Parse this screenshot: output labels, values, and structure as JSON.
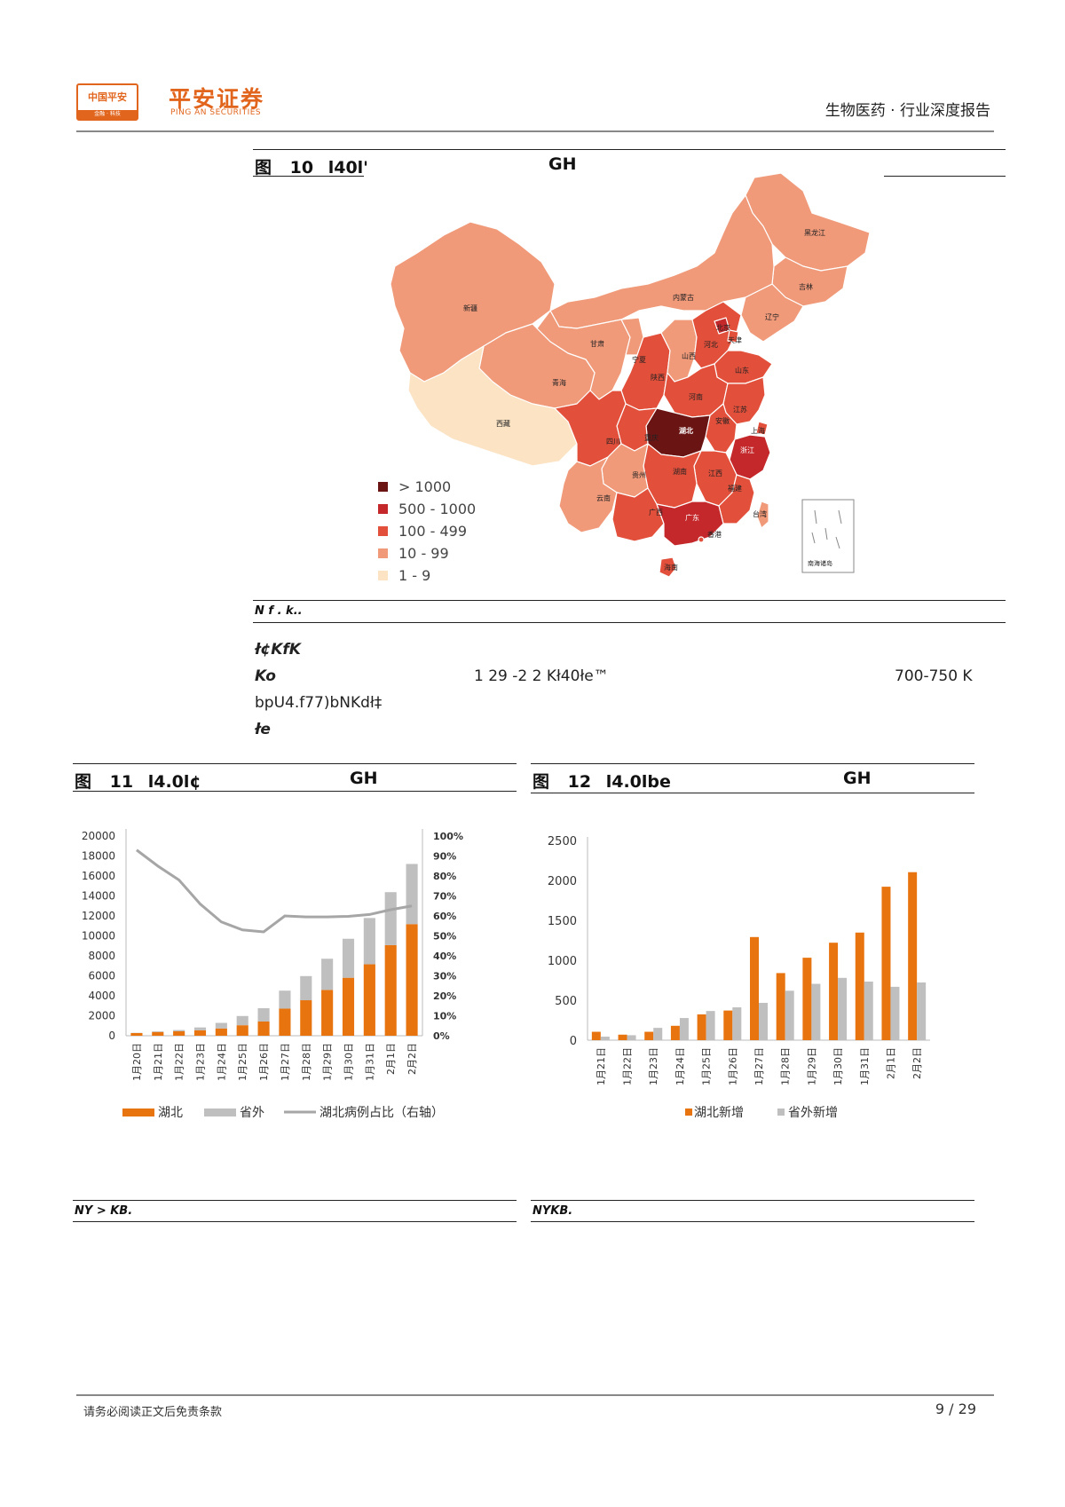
{
  "header": {
    "logo_text": "中国平安",
    "logo_sub": "金融 · 科技",
    "brand_name": "平安证券",
    "brand_sub": "PING AN SECURITIES",
    "report_category": "生物医药 · 行业深度报告"
  },
  "figure10": {
    "label": "图",
    "number": "10",
    "title_fragment": "l40l'",
    "title_suffix": "GH",
    "map_labels": {
      "heilongjiang": "黑龙江",
      "jilin": "吉林",
      "liaoning": "辽宁",
      "neimenggu": "内蒙古",
      "beijing": "北京",
      "tianjin": "天津",
      "hebei": "河北",
      "shanxi": "山西",
      "shandong": "山东",
      "xinjiang": "新疆",
      "gansu": "甘肃",
      "ningxia": "宁夏",
      "shaanxi": "陕西",
      "qinghai": "青海",
      "henan": "河南",
      "jiangsu": "江苏",
      "anhui": "安徽",
      "shanghai": "上海",
      "xizang": "西藏",
      "hubei": "湖北",
      "chongqing": "重庆",
      "sichuan": "四川",
      "zhejiang": "浙江",
      "guizhou": "贵州",
      "hunan": "湖南",
      "jiangxi": "江西",
      "yunnan": "云南",
      "guangxi": "广西",
      "guangdong": "广东",
      "fujian": "福建",
      "taiwan": "台湾",
      "xianggang": "香港",
      "hainan": "海南",
      "nanhai": "南海诸岛"
    },
    "legend": [
      {
        "label": "> 1000",
        "color": "#6b1414"
      },
      {
        "label": "500 - 1000",
        "color": "#c4282b"
      },
      {
        "label": "100 - 499",
        "color": "#e24f3a"
      },
      {
        "label": "10 - 99",
        "color": "#f09a7a"
      },
      {
        "label": "1 - 9",
        "color": "#fbe3c4"
      }
    ],
    "source": "N          f     .  k.."
  },
  "body_text": {
    "line1": "ł¢KfK",
    "line2_a": "Ko",
    "line2_b": "1     29    -2     2 Kł40łe™",
    "line2_c": "700-750  K",
    "line3": "bpU4.f77)bNKdł‡",
    "line4": "łe"
  },
  "figure11": {
    "label": "图",
    "number": "11",
    "title_fragment": "l4.0l¢",
    "title_suffix": "GH",
    "source": "NY        >         KB.",
    "chart_data": {
      "type": "bar",
      "stacked": true,
      "categories": [
        "1月20日",
        "1月21日",
        "1月22日",
        "1月23日",
        "1月24日",
        "1月25日",
        "1月26日",
        "1月27日",
        "1月28日",
        "1月29日",
        "1月30日",
        "1月31日",
        "2月1日",
        "2月2日"
      ],
      "series": [
        {
          "name": "湖北",
          "color": "#e8740f",
          "values": [
            270,
            375,
            444,
            549,
            729,
            1052,
            1423,
            2714,
            3554,
            4586,
            5806,
            7153,
            9074,
            11177
          ]
        },
        {
          "name": "省外",
          "color": "#bfbfbf",
          "values": [
            21,
            65,
            127,
            281,
            558,
            923,
            1334,
            1801,
            2420,
            3125,
            3905,
            4638,
            5306,
            6028
          ]
        }
      ],
      "line_series": {
        "name": "湖北病例占比（右轴）",
        "color": "#a6a6a6",
        "axis": "right",
        "values": [
          0.93,
          0.85,
          0.78,
          0.66,
          0.57,
          0.53,
          0.52,
          0.6,
          0.595,
          0.595,
          0.598,
          0.607,
          0.631,
          0.65
        ]
      },
      "ylim": [
        0,
        20000
      ],
      "yticks": [
        "20000",
        "18000",
        "16000",
        "14000",
        "12000",
        "10000",
        "8000",
        "6000",
        "4000",
        "2000",
        "0"
      ],
      "y2ticks": [
        "100%",
        "90%",
        "80%",
        "70%",
        "60%",
        "50%",
        "40%",
        "30%",
        "20%",
        "10%",
        "0%"
      ],
      "legend": [
        "湖北",
        "省外",
        "湖北病例占比（右轴）"
      ]
    }
  },
  "figure12": {
    "label": "图",
    "number": "12",
    "title_fragment": "l4.0lbe",
    "title_suffix": "GH",
    "source": "NYKB.",
    "chart_data": {
      "type": "bar",
      "categories": [
        "1月21日",
        "1月22日",
        "1月23日",
        "1月24日",
        "1月25日",
        "1月26日",
        "1月27日",
        "1月28日",
        "1月29日",
        "1月30日",
        "1月31日",
        "2月1日",
        "2月2日"
      ],
      "series": [
        {
          "name": "湖北新增",
          "color": "#e8740f",
          "values": [
            105,
            69,
            105,
            180,
            323,
            371,
            1291,
            840,
            1032,
            1220,
            1347,
            1921,
            2103
          ]
        },
        {
          "name": "省外新增",
          "color": "#bfbfbf",
          "values": [
            44,
            62,
            154,
            277,
            365,
            411,
            467,
            619,
            705,
            780,
            733,
            668,
            722
          ]
        }
      ],
      "ylim": [
        0,
        2500
      ],
      "yticks": [
        "2500",
        "2000",
        "1500",
        "1000",
        "500",
        "0"
      ],
      "legend": [
        "湖北新增",
        "省外新增"
      ]
    }
  },
  "footer": {
    "disclaimer": "请务必阅读正文后免责条款",
    "page": "9 / 29"
  }
}
